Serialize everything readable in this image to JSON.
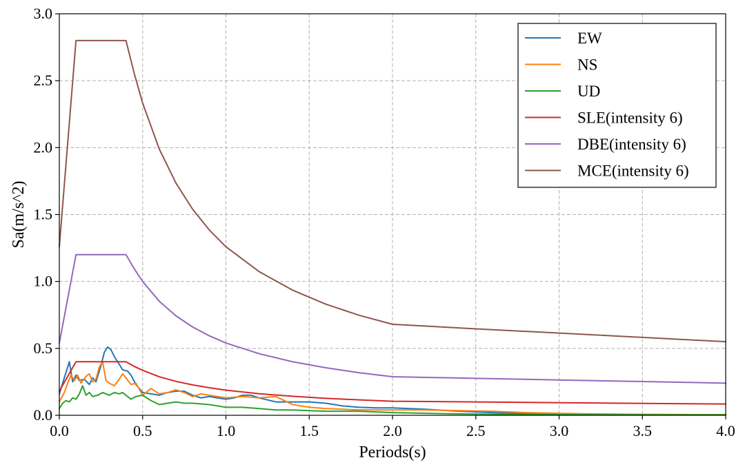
{
  "chart_data": {
    "type": "line",
    "title": "",
    "xlabel": "Periods(s)",
    "ylabel": "Sa(m/s^2)",
    "xlim": [
      0.0,
      4.0
    ],
    "ylim": [
      0.0,
      3.0
    ],
    "xticks": [
      0.0,
      0.5,
      1.0,
      1.5,
      2.0,
      2.5,
      3.0,
      3.5,
      4.0
    ],
    "yticks": [
      0.0,
      0.5,
      1.0,
      1.5,
      2.0,
      2.5,
      3.0
    ],
    "xtick_labels": [
      "0.0",
      "0.5",
      "1.0",
      "1.5",
      "2.0",
      "2.5",
      "3.0",
      "3.5",
      "4.0"
    ],
    "ytick_labels": [
      "0.0",
      "0.5",
      "1.0",
      "1.5",
      "2.0",
      "2.5",
      "3.0"
    ],
    "grid": true,
    "legend_position": "top-right",
    "series": [
      {
        "name": "EW",
        "color": "#1f77b4",
        "x": [
          0.0,
          0.03,
          0.06,
          0.08,
          0.1,
          0.12,
          0.15,
          0.18,
          0.2,
          0.22,
          0.25,
          0.27,
          0.29,
          0.31,
          0.33,
          0.36,
          0.38,
          0.41,
          0.43,
          0.46,
          0.5,
          0.55,
          0.6,
          0.65,
          0.7,
          0.75,
          0.8,
          0.85,
          0.9,
          0.95,
          1.0,
          1.05,
          1.1,
          1.15,
          1.2,
          1.3,
          1.4,
          1.5,
          1.6,
          1.7,
          1.8,
          1.9,
          2.0,
          2.2,
          2.4,
          2.6,
          2.8,
          3.0,
          3.2,
          3.5,
          3.8,
          4.0
        ],
        "y": [
          0.16,
          0.28,
          0.4,
          0.25,
          0.3,
          0.26,
          0.27,
          0.23,
          0.28,
          0.25,
          0.37,
          0.47,
          0.51,
          0.49,
          0.44,
          0.38,
          0.34,
          0.33,
          0.3,
          0.23,
          0.17,
          0.16,
          0.15,
          0.17,
          0.18,
          0.18,
          0.15,
          0.13,
          0.14,
          0.13,
          0.12,
          0.13,
          0.15,
          0.15,
          0.13,
          0.1,
          0.1,
          0.1,
          0.09,
          0.07,
          0.06,
          0.055,
          0.055,
          0.045,
          0.03,
          0.02,
          0.013,
          0.01,
          0.008,
          0.006,
          0.005,
          0.005
        ]
      },
      {
        "name": "NS",
        "color": "#ff7f0e",
        "x": [
          0.0,
          0.03,
          0.05,
          0.07,
          0.09,
          0.11,
          0.13,
          0.16,
          0.18,
          0.2,
          0.22,
          0.24,
          0.26,
          0.28,
          0.3,
          0.33,
          0.36,
          0.38,
          0.4,
          0.43,
          0.46,
          0.5,
          0.55,
          0.6,
          0.65,
          0.7,
          0.75,
          0.8,
          0.85,
          0.9,
          0.95,
          1.0,
          1.1,
          1.2,
          1.3,
          1.4,
          1.5,
          1.6,
          1.8,
          2.0,
          2.2,
          2.4,
          2.6,
          2.8,
          3.0,
          3.2,
          3.5,
          3.8,
          4.0
        ],
        "y": [
          0.1,
          0.17,
          0.24,
          0.3,
          0.26,
          0.3,
          0.24,
          0.29,
          0.31,
          0.25,
          0.27,
          0.36,
          0.4,
          0.26,
          0.24,
          0.22,
          0.27,
          0.31,
          0.28,
          0.23,
          0.24,
          0.15,
          0.2,
          0.16,
          0.17,
          0.19,
          0.17,
          0.14,
          0.16,
          0.15,
          0.14,
          0.13,
          0.14,
          0.13,
          0.14,
          0.08,
          0.06,
          0.05,
          0.04,
          0.04,
          0.04,
          0.035,
          0.03,
          0.02,
          0.015,
          0.01,
          0.007,
          0.005,
          0.005
        ]
      },
      {
        "name": "UD",
        "color": "#2ca02c",
        "x": [
          0.0,
          0.02,
          0.04,
          0.06,
          0.08,
          0.1,
          0.12,
          0.14,
          0.16,
          0.18,
          0.2,
          0.23,
          0.26,
          0.28,
          0.3,
          0.33,
          0.36,
          0.38,
          0.4,
          0.43,
          0.46,
          0.5,
          0.55,
          0.6,
          0.65,
          0.7,
          0.75,
          0.8,
          0.9,
          1.0,
          1.1,
          1.2,
          1.3,
          1.4,
          1.5,
          1.6,
          1.8,
          2.0,
          2.2,
          2.4,
          2.6,
          2.8,
          3.0,
          3.5,
          4.0
        ],
        "y": [
          0.05,
          0.09,
          0.11,
          0.1,
          0.13,
          0.12,
          0.16,
          0.22,
          0.15,
          0.17,
          0.14,
          0.15,
          0.17,
          0.16,
          0.15,
          0.17,
          0.16,
          0.17,
          0.15,
          0.12,
          0.14,
          0.15,
          0.11,
          0.08,
          0.09,
          0.1,
          0.09,
          0.09,
          0.08,
          0.06,
          0.06,
          0.05,
          0.04,
          0.04,
          0.035,
          0.03,
          0.03,
          0.02,
          0.015,
          0.01,
          0.008,
          0.006,
          0.005,
          0.004,
          0.004
        ]
      },
      {
        "name": "SLE(intensity 6)",
        "color": "#d62728",
        "x": [
          0.0,
          0.1,
          0.4,
          0.45,
          0.5,
          0.6,
          0.7,
          0.8,
          0.9,
          1.0,
          1.2,
          1.4,
          1.6,
          1.8,
          2.0,
          2.5,
          3.0,
          3.5,
          4.0
        ],
        "y": [
          0.18,
          0.4,
          0.4,
          0.365,
          0.336,
          0.288,
          0.253,
          0.227,
          0.206,
          0.188,
          0.161,
          0.142,
          0.127,
          0.115,
          0.105,
          0.1,
          0.094,
          0.089,
          0.084
        ]
      },
      {
        "name": "DBE(intensity 6)",
        "color": "#9467bd",
        "x": [
          0.0,
          0.1,
          0.4,
          0.45,
          0.5,
          0.6,
          0.7,
          0.8,
          0.9,
          1.0,
          1.2,
          1.4,
          1.6,
          1.8,
          2.0,
          2.5,
          3.0,
          3.5,
          4.0
        ],
        "y": [
          0.54,
          1.2,
          1.2,
          1.094,
          1.0,
          0.852,
          0.743,
          0.66,
          0.594,
          0.54,
          0.46,
          0.4,
          0.355,
          0.318,
          0.288,
          0.276,
          0.264,
          0.252,
          0.24
        ]
      },
      {
        "name": "MCE(intensity 6)",
        "color": "#8c564b",
        "x": [
          0.0,
          0.1,
          0.4,
          0.45,
          0.5,
          0.6,
          0.7,
          0.8,
          0.9,
          1.0,
          1.2,
          1.4,
          1.6,
          1.8,
          2.0,
          2.5,
          3.0,
          3.5,
          4.0
        ],
        "y": [
          1.26,
          2.8,
          2.8,
          2.553,
          2.333,
          1.989,
          1.735,
          1.54,
          1.385,
          1.259,
          1.073,
          0.935,
          0.83,
          0.747,
          0.68,
          0.646,
          0.614,
          0.582,
          0.55
        ]
      }
    ]
  }
}
